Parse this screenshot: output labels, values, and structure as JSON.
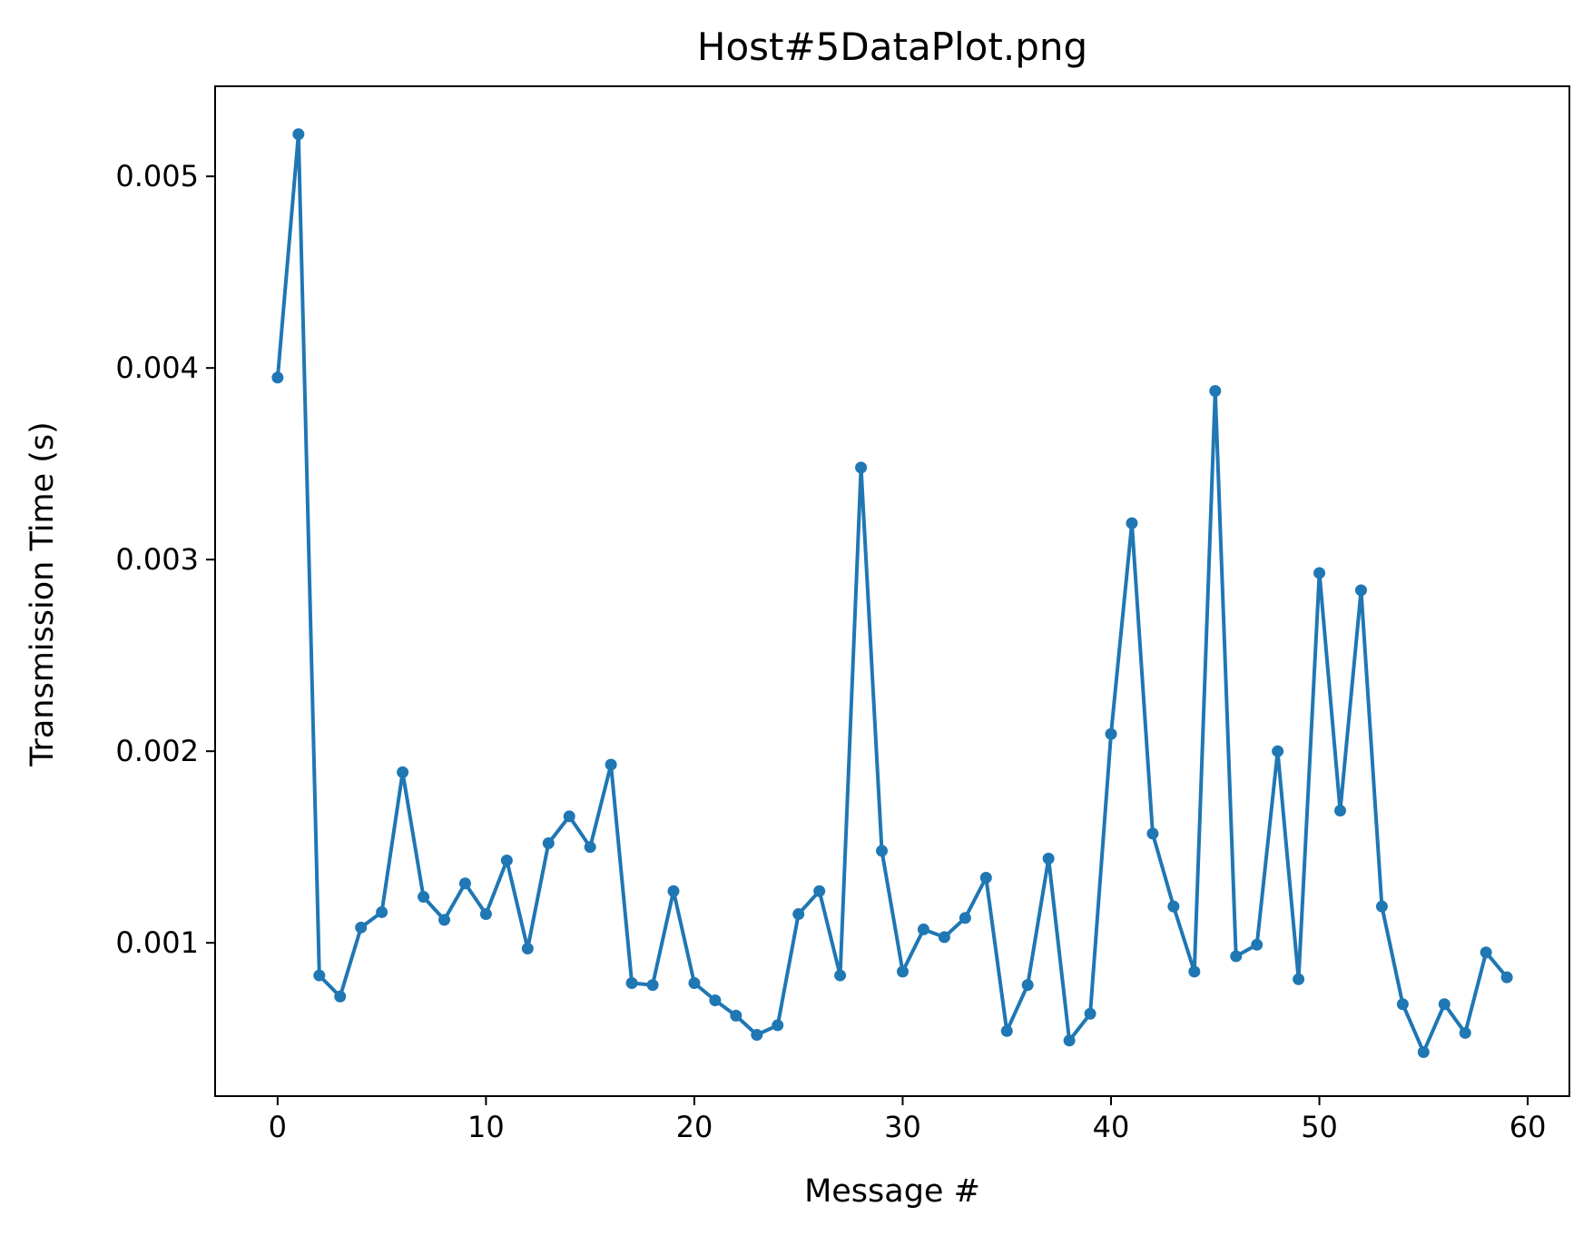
{
  "chart_data": {
    "type": "line",
    "title": "Host#5DataPlot.png",
    "xlabel": "Message #",
    "ylabel": "Transmission Time (s)",
    "xlim": [
      -3,
      62
    ],
    "ylim": [
      0.0002,
      0.00547
    ],
    "xticks": [
      0,
      10,
      20,
      30,
      40,
      50,
      60
    ],
    "yticks": [
      0.001,
      0.002,
      0.003,
      0.004,
      0.005
    ],
    "xtick_labels": [
      "0",
      "10",
      "20",
      "30",
      "40",
      "50",
      "60"
    ],
    "ytick_labels": [
      "0.001",
      "0.002",
      "0.003",
      "0.004",
      "0.005"
    ],
    "grid": false,
    "legend": "none",
    "series": [
      {
        "color": "#1f77b4",
        "marker": "circle",
        "x": [
          0,
          1,
          2,
          3,
          4,
          5,
          6,
          7,
          8,
          9,
          10,
          11,
          12,
          13,
          14,
          15,
          16,
          17,
          18,
          19,
          20,
          21,
          22,
          23,
          24,
          25,
          26,
          27,
          28,
          29,
          30,
          31,
          32,
          33,
          34,
          35,
          36,
          37,
          38,
          39,
          40,
          41,
          42,
          43,
          44,
          45,
          46,
          47,
          48,
          49,
          50,
          51,
          52,
          53,
          54,
          55,
          56,
          57,
          58,
          59
        ],
        "values": [
          0.00395,
          0.00522,
          0.00083,
          0.00072,
          0.00108,
          0.00116,
          0.00189,
          0.00124,
          0.00112,
          0.00131,
          0.00115,
          0.00143,
          0.00097,
          0.00152,
          0.00166,
          0.0015,
          0.00193,
          0.00079,
          0.00078,
          0.00127,
          0.00079,
          0.0007,
          0.00062,
          0.00052,
          0.00057,
          0.00115,
          0.00127,
          0.00083,
          0.00348,
          0.00148,
          0.00085,
          0.00107,
          0.00103,
          0.00113,
          0.00134,
          0.00054,
          0.00078,
          0.00144,
          0.00049,
          0.00063,
          0.00209,
          0.00319,
          0.00157,
          0.00119,
          0.00085,
          0.00388,
          0.00093,
          0.00099,
          0.002,
          0.00081,
          0.00293,
          0.00169,
          0.00284,
          0.00119,
          0.00068,
          0.00043,
          0.00068,
          0.00053,
          0.00095,
          0.00082
        ]
      }
    ]
  }
}
